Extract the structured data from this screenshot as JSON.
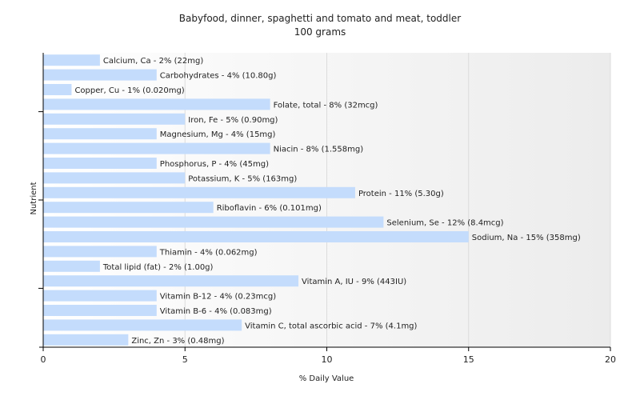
{
  "chart_data": {
    "type": "bar",
    "orientation": "horizontal",
    "title": "Babyfood, dinner, spaghetti and tomato and meat, toddler",
    "subtitle": "100 grams",
    "xlabel": "% Daily Value",
    "ylabel": "Nutrient",
    "xlim": [
      0,
      20
    ],
    "xticks": [
      0,
      5,
      10,
      15,
      20
    ],
    "grid": true,
    "bar_color": "#c4dcfc",
    "categories": [
      "Calcium, Ca",
      "Carbohydrates",
      "Copper, Cu",
      "Folate, total",
      "Iron, Fe",
      "Magnesium, Mg",
      "Niacin",
      "Phosphorus, P",
      "Potassium, K",
      "Protein",
      "Riboflavin",
      "Selenium, Se",
      "Sodium, Na",
      "Thiamin",
      "Total lipid (fat)",
      "Vitamin A, IU",
      "Vitamin B-12",
      "Vitamin B-6",
      "Vitamin C, total ascorbic acid",
      "Zinc, Zn"
    ],
    "values": [
      2,
      4,
      1,
      8,
      5,
      4,
      8,
      4,
      5,
      11,
      6,
      12,
      15,
      4,
      2,
      9,
      4,
      4,
      7,
      3
    ],
    "labels": [
      "Calcium, Ca - 2% (22mg)",
      "Carbohydrates - 4% (10.80g)",
      "Copper, Cu - 1% (0.020mg)",
      "Folate, total - 8% (32mcg)",
      "Iron, Fe - 5% (0.90mg)",
      "Magnesium, Mg - 4% (15mg)",
      "Niacin - 8% (1.558mg)",
      "Phosphorus, P - 4% (45mg)",
      "Potassium, K - 5% (163mg)",
      "Protein - 11% (5.30g)",
      "Riboflavin - 6% (0.101mg)",
      "Selenium, Se - 12% (8.4mcg)",
      "Sodium, Na - 15% (358mg)",
      "Thiamin - 4% (0.062mg)",
      "Total lipid (fat) - 2% (1.00g)",
      "Vitamin A, IU - 9% (443IU)",
      "Vitamin B-12 - 4% (0.23mcg)",
      "Vitamin B-6 - 4% (0.083mg)",
      "Vitamin C, total ascorbic acid - 7% (4.1mg)",
      "Zinc, Zn - 3% (0.48mg)"
    ]
  }
}
